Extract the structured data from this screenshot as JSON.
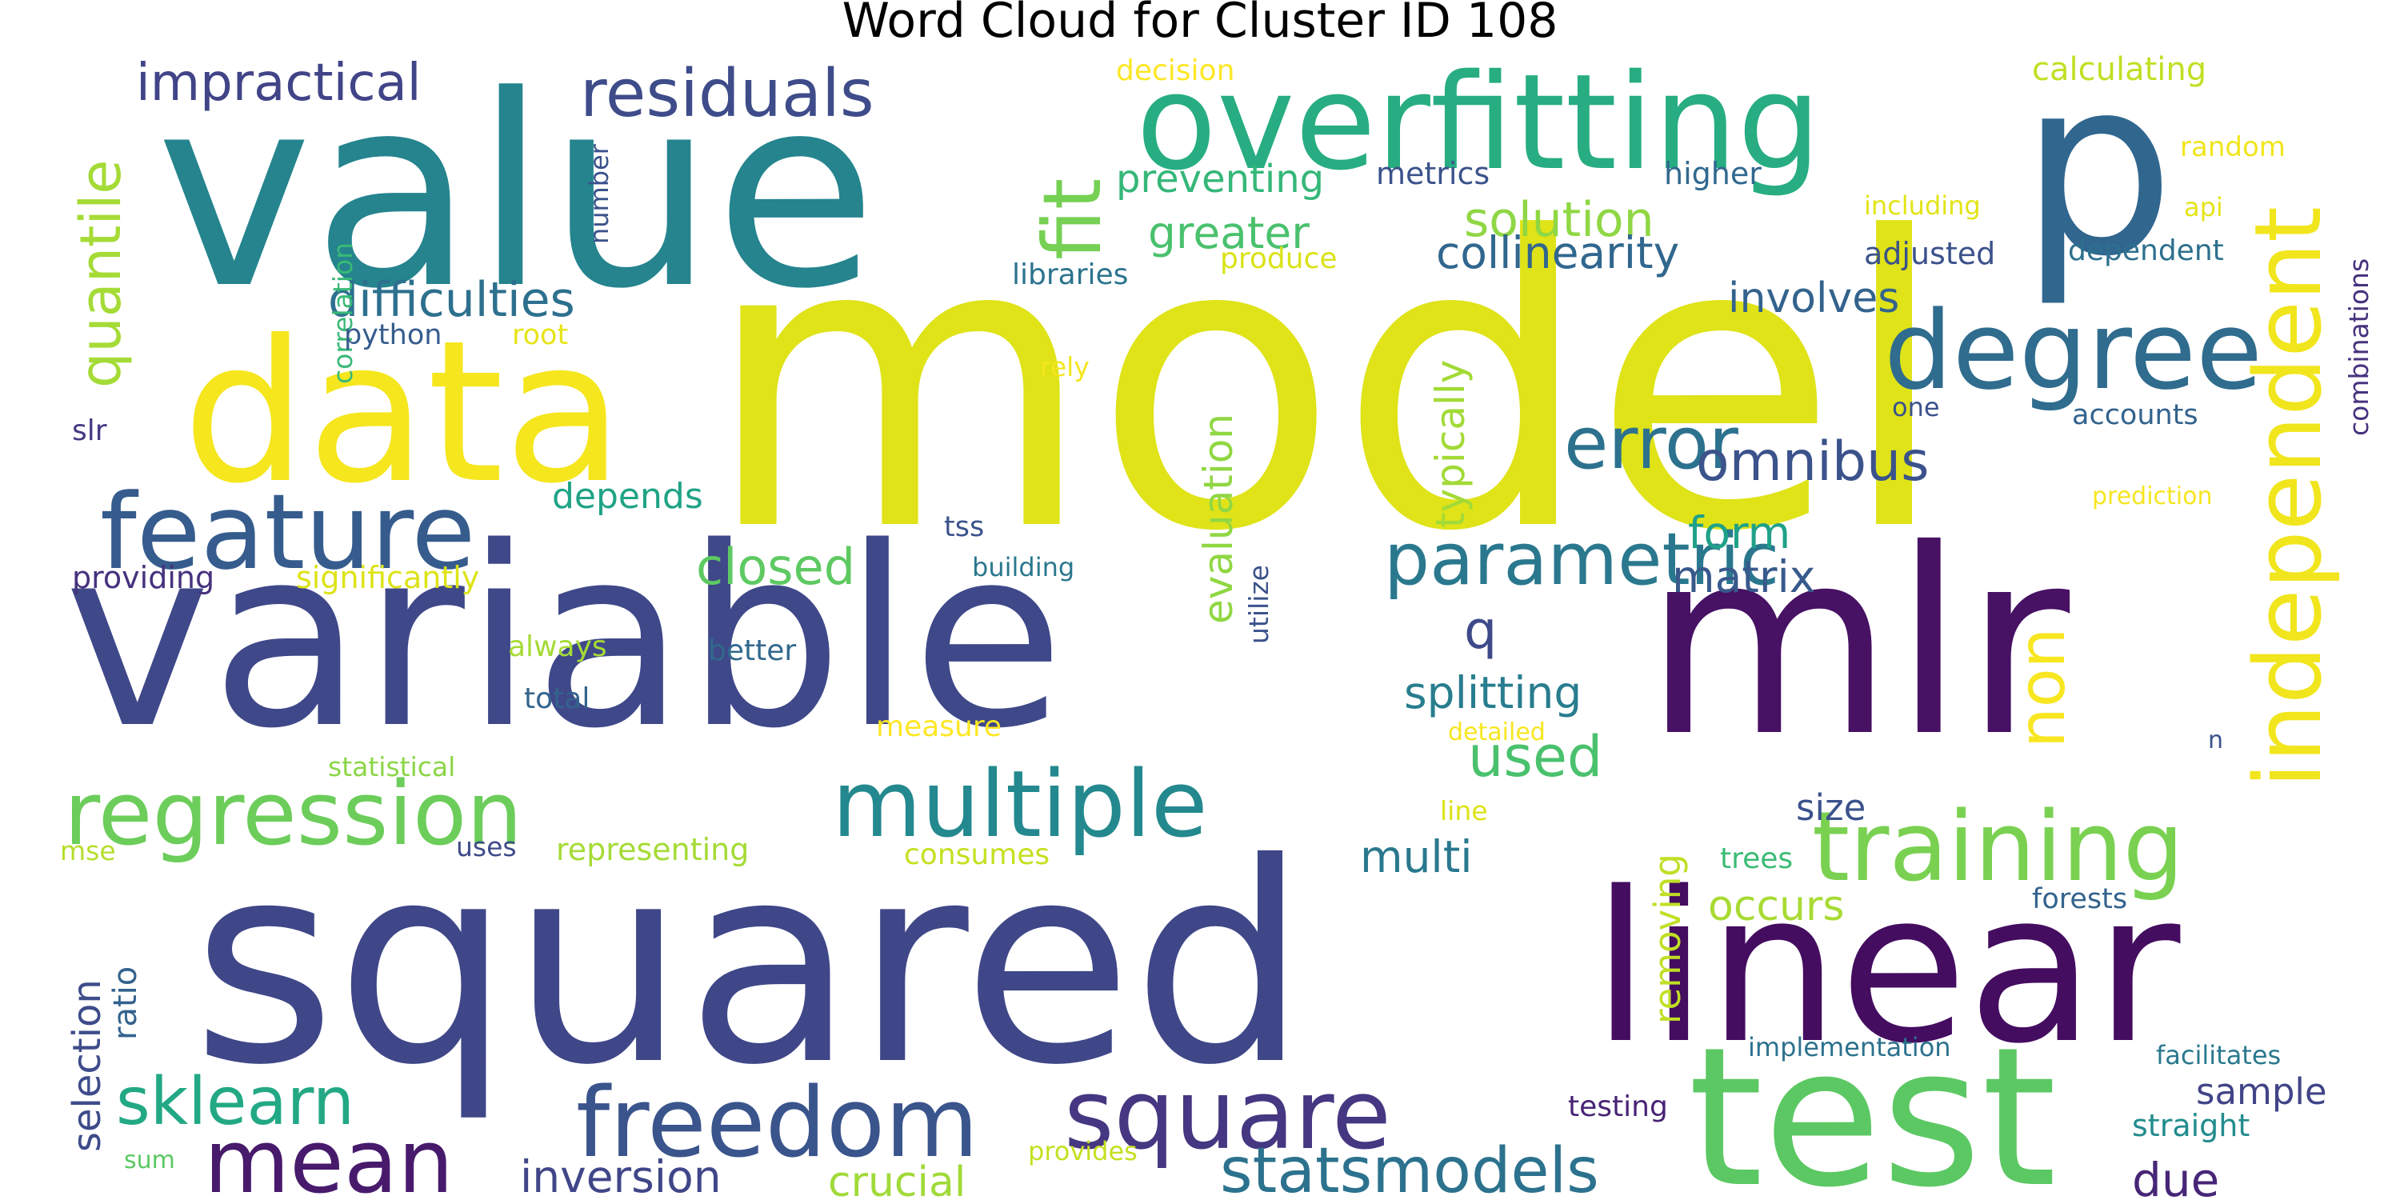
{
  "title": "Word Cloud for Cluster ID 108",
  "words": [
    {
      "text": "model",
      "color": "#dfe318"
    },
    {
      "text": "value",
      "color": "#25848e"
    },
    {
      "text": "variable",
      "color": "#3f4889"
    },
    {
      "text": "squared",
      "color": "#3f4788"
    },
    {
      "text": "mlr",
      "color": "#471164"
    },
    {
      "text": "data",
      "color": "#f5e61e"
    },
    {
      "text": "p",
      "color": "#31668e"
    },
    {
      "text": "overfitting",
      "color": "#27ad81"
    },
    {
      "text": "linear",
      "color": "#440d60"
    },
    {
      "text": "test",
      "color": "#5cc863"
    },
    {
      "text": "independent",
      "color": "#f1e51d"
    },
    {
      "text": "fit",
      "color": "#75d054"
    },
    {
      "text": "degree",
      "color": "#2f6c8e"
    },
    {
      "text": "feature",
      "color": "#365c8d"
    },
    {
      "text": "regression",
      "color": "#6ccd5a"
    },
    {
      "text": "training",
      "color": "#7ad151"
    },
    {
      "text": "multiple",
      "color": "#23898e"
    },
    {
      "text": "square",
      "color": "#453781"
    },
    {
      "text": "freedom",
      "color": "#3a548c"
    },
    {
      "text": "mean",
      "color": "#481a6c"
    },
    {
      "text": "residuals",
      "color": "#3e4c8a"
    },
    {
      "text": "error",
      "color": "#2c728e"
    },
    {
      "text": "parametric",
      "color": "#2a788e"
    },
    {
      "text": "impractical",
      "color": "#414487"
    },
    {
      "text": "difficulties",
      "color": "#2d708e"
    },
    {
      "text": "quantile",
      "color": "#a5db36"
    },
    {
      "text": "sklearn",
      "color": "#22a884"
    },
    {
      "text": "statsmodels",
      "color": "#2c728e"
    },
    {
      "text": "omnibus",
      "color": "#3b528b"
    },
    {
      "text": "non",
      "color": "#f8e621"
    },
    {
      "text": "solution",
      "color": "#8fd744"
    },
    {
      "text": "collinearity",
      "color": "#31678e"
    },
    {
      "text": "greater",
      "color": "#4ac16d"
    },
    {
      "text": "preventing",
      "color": "#35b779"
    },
    {
      "text": "involves",
      "color": "#33638d"
    },
    {
      "text": "closed",
      "color": "#5ec962"
    },
    {
      "text": "matrix",
      "color": "#38598c"
    },
    {
      "text": "form",
      "color": "#1fa188"
    },
    {
      "text": "typically",
      "color": "#a2da37"
    },
    {
      "text": "evaluation",
      "color": "#90d743"
    },
    {
      "text": "splitting",
      "color": "#287d8e"
    },
    {
      "text": "used",
      "color": "#4ac16d"
    },
    {
      "text": "q",
      "color": "#3e4989"
    },
    {
      "text": "multi",
      "color": "#2a788e"
    },
    {
      "text": "occurs",
      "color": "#a8db34"
    },
    {
      "text": "removing",
      "color": "#c0df25"
    },
    {
      "text": "size",
      "color": "#3b528b"
    },
    {
      "text": "depends",
      "color": "#20a386"
    },
    {
      "text": "inversion",
      "color": "#404688"
    },
    {
      "text": "crucial",
      "color": "#a0da39"
    },
    {
      "text": "selection",
      "color": "#3e4c8a"
    },
    {
      "text": "ratio",
      "color": "#33628d"
    },
    {
      "text": "due",
      "color": "#482677"
    },
    {
      "text": "sample",
      "color": "#414487"
    },
    {
      "text": "metrics",
      "color": "#3b528b"
    },
    {
      "text": "higher",
      "color": "#31688e"
    },
    {
      "text": "decision",
      "color": "#fde725"
    },
    {
      "text": "calculating",
      "color": "#c2df23"
    },
    {
      "text": "random",
      "color": "#f1e51d"
    },
    {
      "text": "api",
      "color": "#e5e419"
    },
    {
      "text": "including",
      "color": "#e2e418"
    },
    {
      "text": "adjusted",
      "color": "#3b528b"
    },
    {
      "text": "dependent",
      "color": "#2d708e"
    },
    {
      "text": "combinations",
      "color": "#46337e"
    },
    {
      "text": "libraries",
      "color": "#2c738e"
    },
    {
      "text": "produce",
      "color": "#dae319"
    },
    {
      "text": "number",
      "color": "#3b528b"
    },
    {
      "text": "correlation",
      "color": "#38b977"
    },
    {
      "text": "python",
      "color": "#365c8d"
    },
    {
      "text": "root",
      "color": "#e7e419"
    },
    {
      "text": "rely",
      "color": "#f4e61e"
    },
    {
      "text": "one",
      "color": "#3b528b"
    },
    {
      "text": "accounts",
      "color": "#33638d"
    },
    {
      "text": "prediction",
      "color": "#f6e620"
    },
    {
      "text": "slr",
      "color": "#443983"
    },
    {
      "text": "tss",
      "color": "#3b528b"
    },
    {
      "text": "building",
      "color": "#2a788e"
    },
    {
      "text": "providing",
      "color": "#46327e"
    },
    {
      "text": "significantly",
      "color": "#dde318"
    },
    {
      "text": "utilize",
      "color": "#3b528b"
    },
    {
      "text": "always",
      "color": "#a5db36"
    },
    {
      "text": "better",
      "color": "#31688e"
    },
    {
      "text": "total",
      "color": "#33638d"
    },
    {
      "text": "detailed",
      "color": "#f6e620"
    },
    {
      "text": "statistical",
      "color": "#8bd646"
    },
    {
      "text": "measure",
      "color": "#fde725"
    },
    {
      "text": "n",
      "color": "#3b528b"
    },
    {
      "text": "line",
      "color": "#dde318"
    },
    {
      "text": "mse",
      "color": "#b5de2b"
    },
    {
      "text": "uses",
      "color": "#3e4a89"
    },
    {
      "text": "representing",
      "color": "#a5db36"
    },
    {
      "text": "consumes",
      "color": "#c5e021"
    },
    {
      "text": "trees",
      "color": "#3cbc75"
    },
    {
      "text": "forests",
      "color": "#33638d"
    },
    {
      "text": "implementation",
      "color": "#2c728e"
    },
    {
      "text": "facilitates",
      "color": "#2a788e"
    },
    {
      "text": "testing",
      "color": "#482475"
    },
    {
      "text": "straight",
      "color": "#228c8d"
    },
    {
      "text": "sum",
      "color": "#5cc863"
    },
    {
      "text": "provides",
      "color": "#c5e021"
    }
  ]
}
